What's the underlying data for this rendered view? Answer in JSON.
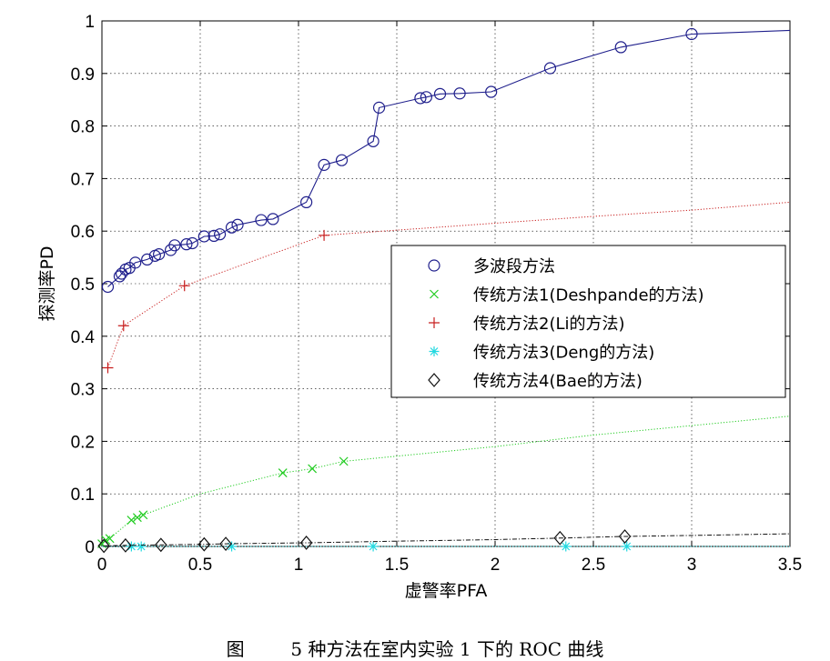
{
  "figure_caption": "图        5 种方法在室内实验 1 下的 ROC 曲线",
  "chart_data": {
    "type": "line",
    "title": "",
    "xlabel": "虚警率PFA",
    "ylabel": "探测率PD",
    "xlim": [
      0,
      3.5
    ],
    "ylim": [
      0,
      1
    ],
    "xticks": [
      0,
      0.5,
      1,
      1.5,
      2,
      2.5,
      3,
      3.5
    ],
    "xtick_labels": [
      "0",
      "0.5",
      "1",
      "1.5",
      "2",
      "2.5",
      "3",
      "3.5"
    ],
    "yticks": [
      0,
      0.1,
      0.2,
      0.3,
      0.4,
      0.5,
      0.6,
      0.7,
      0.8,
      0.9,
      1
    ],
    "ytick_labels": [
      "0",
      "0.1",
      "0.2",
      "0.3",
      "0.4",
      "0.5",
      "0.6",
      "0.7",
      "0.8",
      "0.9",
      "1"
    ],
    "grid": true,
    "legend_position": "center-right",
    "series": [
      {
        "name": "多波段方法",
        "color": "#1f1f8c",
        "line_style": "solid",
        "marker": "circle",
        "points": [
          [
            0.03,
            0.494
          ],
          [
            0.09,
            0.514
          ],
          [
            0.1,
            0.519
          ],
          [
            0.12,
            0.527
          ],
          [
            0.14,
            0.53
          ],
          [
            0.17,
            0.54
          ],
          [
            0.23,
            0.546
          ],
          [
            0.27,
            0.553
          ],
          [
            0.29,
            0.556
          ],
          [
            0.35,
            0.564
          ],
          [
            0.37,
            0.573
          ],
          [
            0.43,
            0.575
          ],
          [
            0.46,
            0.577
          ],
          [
            0.52,
            0.59
          ],
          [
            0.57,
            0.591
          ],
          [
            0.6,
            0.594
          ],
          [
            0.66,
            0.607
          ],
          [
            0.69,
            0.612
          ],
          [
            0.81,
            0.621
          ],
          [
            0.87,
            0.623
          ],
          [
            1.04,
            0.655
          ],
          [
            1.13,
            0.726
          ],
          [
            1.22,
            0.735
          ],
          [
            1.38,
            0.771
          ],
          [
            1.41,
            0.835
          ],
          [
            1.62,
            0.853
          ],
          [
            1.65,
            0.855
          ],
          [
            1.72,
            0.861
          ],
          [
            1.82,
            0.862
          ],
          [
            1.98,
            0.865
          ],
          [
            2.28,
            0.91
          ],
          [
            2.64,
            0.95
          ],
          [
            3,
            0.975
          ],
          [
            3.5,
            0.982
          ]
        ],
        "marker_points": [
          [
            0.03,
            0.494
          ],
          [
            0.09,
            0.514
          ],
          [
            0.1,
            0.519
          ],
          [
            0.12,
            0.527
          ],
          [
            0.14,
            0.53
          ],
          [
            0.17,
            0.54
          ],
          [
            0.23,
            0.546
          ],
          [
            0.27,
            0.553
          ],
          [
            0.29,
            0.556
          ],
          [
            0.35,
            0.564
          ],
          [
            0.37,
            0.573
          ],
          [
            0.43,
            0.575
          ],
          [
            0.46,
            0.577
          ],
          [
            0.52,
            0.59
          ],
          [
            0.57,
            0.591
          ],
          [
            0.6,
            0.594
          ],
          [
            0.66,
            0.607
          ],
          [
            0.69,
            0.612
          ],
          [
            0.81,
            0.621
          ],
          [
            0.87,
            0.623
          ],
          [
            1.04,
            0.655
          ],
          [
            1.13,
            0.726
          ],
          [
            1.22,
            0.735
          ],
          [
            1.38,
            0.771
          ],
          [
            1.41,
            0.835
          ],
          [
            1.62,
            0.853
          ],
          [
            1.65,
            0.855
          ],
          [
            1.72,
            0.861
          ],
          [
            1.82,
            0.862
          ],
          [
            1.98,
            0.865
          ],
          [
            2.28,
            0.91
          ],
          [
            2.64,
            0.95
          ],
          [
            3,
            0.975
          ]
        ]
      },
      {
        "name": "传统方法1(Deshpande的方法)",
        "color": "#22cc22",
        "line_style": "dotted",
        "marker": "x",
        "points": [
          [
            0,
            0.005
          ],
          [
            0.02,
            0.012
          ],
          [
            0.04,
            0.015
          ],
          [
            0.15,
            0.05
          ],
          [
            0.18,
            0.055
          ],
          [
            0.21,
            0.06
          ],
          [
            0.5,
            0.1
          ],
          [
            0.92,
            0.14
          ],
          [
            1.07,
            0.148
          ],
          [
            1.23,
            0.162
          ],
          [
            2,
            0.19
          ],
          [
            2.5,
            0.212
          ],
          [
            3,
            0.23
          ],
          [
            3.5,
            0.248
          ]
        ],
        "marker_points": [
          [
            0,
            0.005
          ],
          [
            0.02,
            0.012
          ],
          [
            0.04,
            0.015
          ],
          [
            0.15,
            0.05
          ],
          [
            0.18,
            0.055
          ],
          [
            0.21,
            0.06
          ],
          [
            0.92,
            0.14
          ],
          [
            1.07,
            0.148
          ],
          [
            1.23,
            0.162
          ]
        ]
      },
      {
        "name": "传统方法2(Li的方法)",
        "color": "#c81e1e",
        "line_style": "dotted",
        "marker": "plus",
        "points": [
          [
            0.03,
            0.34
          ],
          [
            0.11,
            0.42
          ],
          [
            0.42,
            0.496
          ],
          [
            1.13,
            0.592
          ],
          [
            2,
            0.615
          ],
          [
            2.5,
            0.628
          ],
          [
            3,
            0.64
          ],
          [
            3.5,
            0.655
          ]
        ],
        "marker_points": [
          [
            0.03,
            0.34
          ],
          [
            0.11,
            0.42
          ],
          [
            0.42,
            0.496
          ],
          [
            1.13,
            0.592
          ]
        ]
      },
      {
        "name": "传统方法3(Deng的方法)",
        "color": "#22d8e0",
        "line_style": "dotted",
        "marker": "asterisk",
        "points": [
          [
            0,
            0
          ],
          [
            0.15,
            0
          ],
          [
            0.2,
            0
          ],
          [
            0.66,
            0
          ],
          [
            1.38,
            0
          ],
          [
            2.36,
            0
          ],
          [
            2.67,
            0
          ],
          [
            3.5,
            0
          ]
        ],
        "marker_points": [
          [
            0.15,
            0
          ],
          [
            0.2,
            0
          ],
          [
            0.66,
            0
          ],
          [
            1.38,
            0
          ],
          [
            2.36,
            0
          ],
          [
            2.67,
            0
          ]
        ]
      },
      {
        "name": "传统方法4(Bae的方法)",
        "color": "#111111",
        "line_style": "dashdot",
        "marker": "diamond",
        "points": [
          [
            0.01,
            0.001
          ],
          [
            0.12,
            0.002
          ],
          [
            0.3,
            0.003
          ],
          [
            0.52,
            0.004
          ],
          [
            0.63,
            0.005
          ],
          [
            1.04,
            0.007
          ],
          [
            1.5,
            0.01
          ],
          [
            2,
            0.013
          ],
          [
            2.33,
            0.016
          ],
          [
            2.66,
            0.019
          ],
          [
            3,
            0.021
          ],
          [
            3.5,
            0.024
          ]
        ],
        "marker_points": [
          [
            0.01,
            0.001
          ],
          [
            0.12,
            0.002
          ],
          [
            0.3,
            0.003
          ],
          [
            0.52,
            0.004
          ],
          [
            0.63,
            0.005
          ],
          [
            1.04,
            0.007
          ],
          [
            2.33,
            0.016
          ],
          [
            2.66,
            0.019
          ]
        ]
      }
    ]
  }
}
